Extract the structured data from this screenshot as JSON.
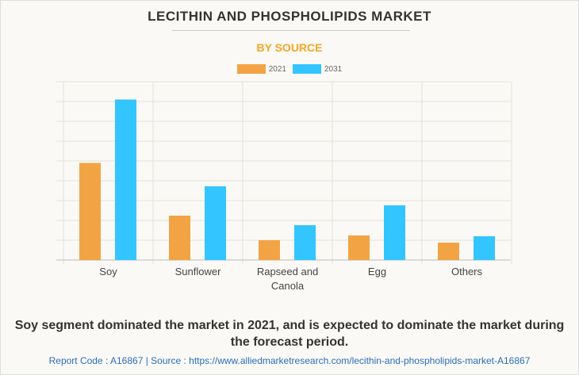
{
  "chart_data": {
    "type": "bar",
    "title": "LECITHIN AND PHOSPHOLIPIDS MARKET",
    "subtitle": "BY SOURCE",
    "categories": [
      "Soy",
      "Sunflower",
      "Rapseed and Canola",
      "Egg",
      "Others"
    ],
    "series": [
      {
        "name": "2021",
        "color": "#f2a444",
        "values": [
          4.9,
          2.24,
          1.0,
          1.24,
          0.88
        ]
      },
      {
        "name": "2031",
        "color": "#33c5ff",
        "values": [
          8.1,
          3.72,
          1.76,
          2.76,
          1.2
        ]
      }
    ],
    "ylim": [
      0,
      9
    ],
    "grid": true,
    "legend_position": "top-center",
    "xlabel": "",
    "ylabel": ""
  },
  "caption": "Soy segment dominated the market in 2021, and is expected to dominate the market during the forecast period.",
  "footer": "Report Code : A16867  |  Source : https://www.alliedmarketresearch.com/lecithin-and-phospholipids-market-A16867"
}
